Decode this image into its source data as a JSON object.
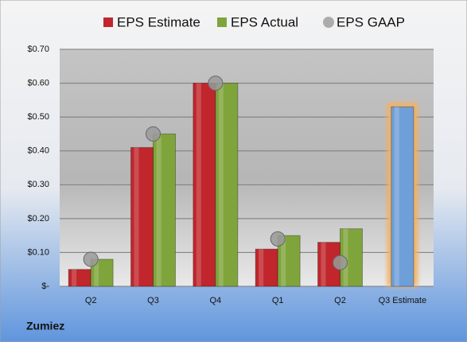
{
  "chart_data": {
    "type": "bar",
    "categories": [
      "Q2",
      "Q3",
      "Q4",
      "Q1",
      "Q2",
      "Q3 Estimate"
    ],
    "series": [
      {
        "name": "EPS Estimate",
        "color": "#c0262c",
        "values": [
          0.05,
          0.41,
          0.6,
          0.11,
          0.13,
          0.53
        ]
      },
      {
        "name": "EPS Actual",
        "color": "#7fa43b",
        "values": [
          0.08,
          0.45,
          0.6,
          0.15,
          0.17,
          null
        ]
      },
      {
        "name": "EPS GAAP",
        "color": "#9a9a9a",
        "values": [
          0.08,
          0.45,
          0.6,
          0.14,
          0.07,
          null
        ]
      }
    ],
    "highlight_color": "#6f9fd8",
    "highlight_glow": "#f4b060",
    "ylim": [
      0,
      0.7
    ],
    "yticks": [
      {
        "value": 0,
        "label": "$-"
      },
      {
        "value": 0.1,
        "label": "$0.10"
      },
      {
        "value": 0.2,
        "label": "$0.20"
      },
      {
        "value": 0.3,
        "label": "$0.30"
      },
      {
        "value": 0.4,
        "label": "$0.40"
      },
      {
        "value": 0.5,
        "label": "$0.50"
      },
      {
        "value": 0.6,
        "label": "$0.60"
      },
      {
        "value": 0.7,
        "label": "$0.70"
      }
    ],
    "grid": true,
    "company": "Zumiez"
  }
}
